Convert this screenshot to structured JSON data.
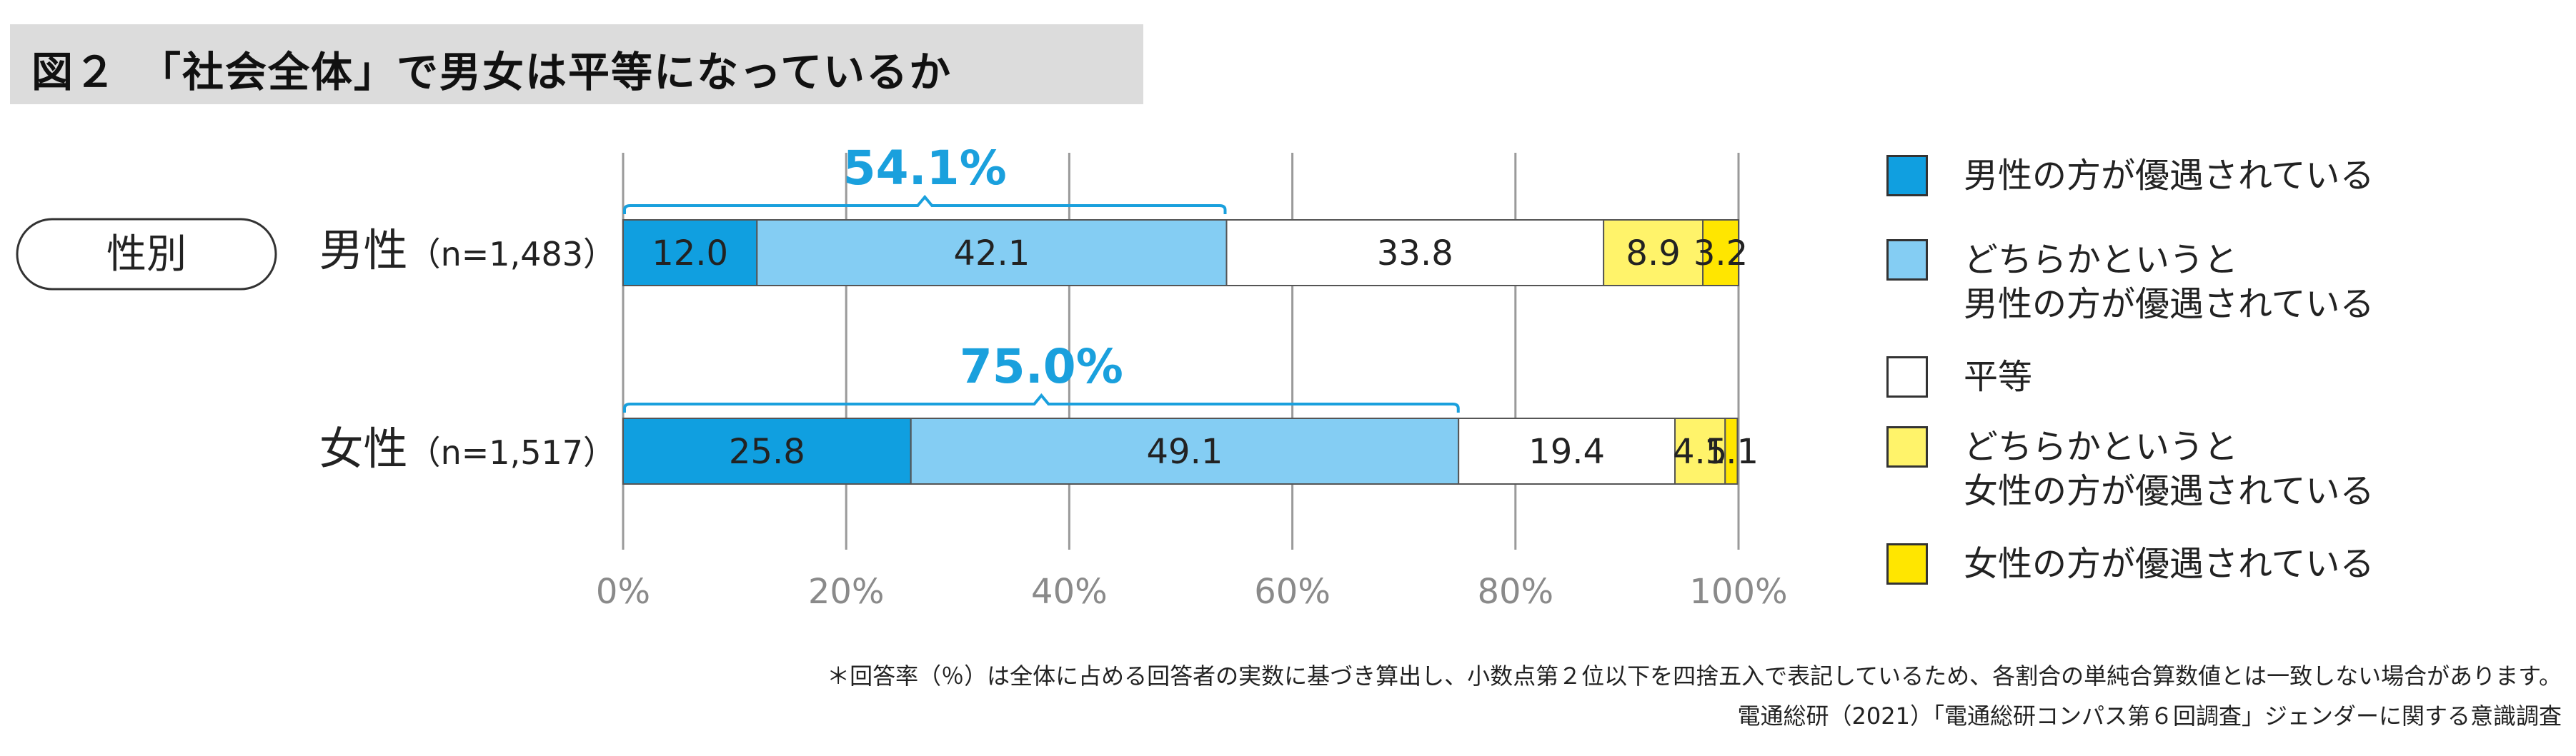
{
  "title": "図２　「社会全体」で男女は平等になっているか",
  "group_label": "性別",
  "footnote1": "＊回答率（％）は全体に占める回答者の実数に基づき算出し、小数点第２位以下を四捨五入で表記しているため、各割合の単純合算数値とは一致しない場合があります。",
  "footnote2": "電通総研（2021）「電通総研コンパス第６回調査」ジェンダーに関する意識調査",
  "chart_data": {
    "type": "bar",
    "orientation": "horizontal",
    "stacked": true,
    "xlim": [
      0,
      100
    ],
    "xticks": [
      "0%",
      "20%",
      "40%",
      "60%",
      "80%",
      "100%"
    ],
    "grid": true,
    "categories": [
      "男性（n=1,483）",
      "女性（n=1,517）"
    ],
    "series": [
      {
        "name": "男性の方が優遇されている",
        "color": "#109fe0",
        "values": [
          12.0,
          25.8
        ],
        "labels": [
          "12.0",
          "25.8"
        ]
      },
      {
        "name": "どちらかというと\n男性の方が優遇されている",
        "color": "#84cdf3",
        "values": [
          42.1,
          49.1
        ],
        "labels": [
          "42.1",
          "49.1"
        ]
      },
      {
        "name": "平等",
        "color": "#ffffff",
        "values": [
          33.8,
          19.4
        ],
        "labels": [
          "33.8",
          "19.4"
        ]
      },
      {
        "name": "どちらかというと\n女性の方が優遇されている",
        "color": "#fff36a",
        "values": [
          8.9,
          4.5
        ],
        "labels": [
          "8.9",
          "4.5"
        ]
      },
      {
        "name": "女性の方が優遇されている",
        "color": "#ffe600",
        "values": [
          3.2,
          1.1
        ],
        "labels": [
          "3.2",
          "1.1"
        ]
      }
    ],
    "annotations": [
      {
        "row": 0,
        "text": "54.1%",
        "from": 0,
        "to": 54.1
      },
      {
        "row": 1,
        "text": "75.0%",
        "from": 0,
        "to": 75.0
      }
    ],
    "annotation_color": "#1aa0dd"
  }
}
